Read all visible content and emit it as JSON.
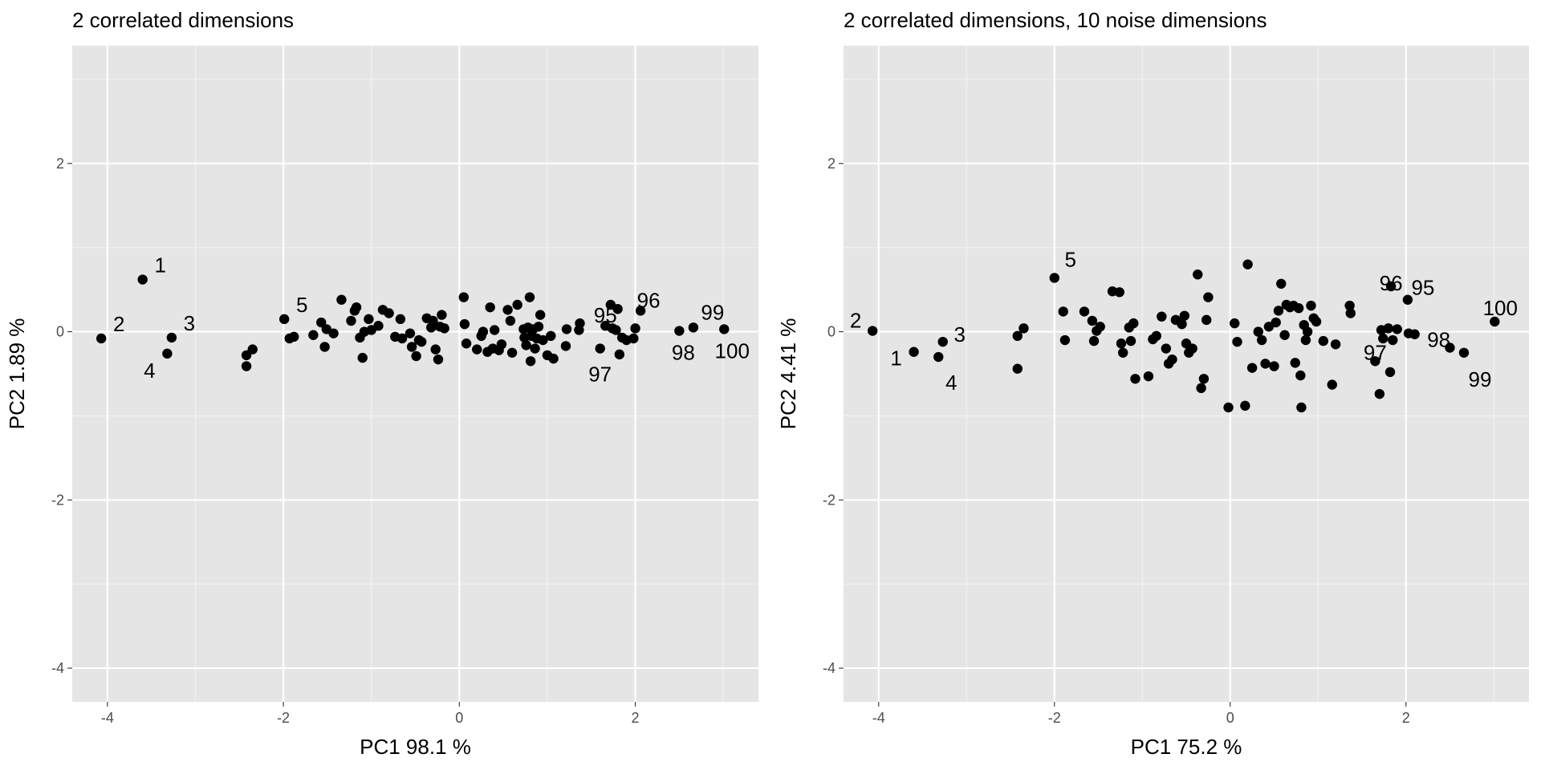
{
  "chart_data": [
    {
      "type": "scatter",
      "title": "2 correlated dimensions",
      "xlabel": "PC1  98.1 %",
      "ylabel": "PC2  1.89 %",
      "xlim": [
        -4.4,
        3.4
      ],
      "ylim": [
        -4.4,
        3.4
      ],
      "xticks": [
        -4,
        -2,
        0,
        2
      ],
      "yticks": [
        -4,
        -2,
        0,
        2
      ],
      "grid": true,
      "points": [
        {
          "x": -4.07,
          "y": -0.08,
          "label": "2"
        },
        {
          "x": -3.6,
          "y": 0.62,
          "label": "1"
        },
        {
          "x": -3.27,
          "y": -0.07,
          "label": "3"
        },
        {
          "x": -3.32,
          "y": -0.26,
          "label": "4"
        },
        {
          "x": -2.42,
          "y": -0.28
        },
        {
          "x": -2.42,
          "y": -0.41
        },
        {
          "x": -2.35,
          "y": -0.21
        },
        {
          "x": -1.99,
          "y": 0.15,
          "label": "5"
        },
        {
          "x": -1.93,
          "y": -0.08
        },
        {
          "x": -1.88,
          "y": -0.06
        },
        {
          "x": -1.66,
          "y": -0.04
        },
        {
          "x": -1.57,
          "y": 0.11
        },
        {
          "x": -1.53,
          "y": -0.18
        },
        {
          "x": -1.51,
          "y": 0.03
        },
        {
          "x": -1.43,
          "y": -0.02
        },
        {
          "x": -1.34,
          "y": 0.38
        },
        {
          "x": -1.23,
          "y": 0.13
        },
        {
          "x": -1.19,
          "y": 0.25
        },
        {
          "x": -1.17,
          "y": 0.29
        },
        {
          "x": -1.13,
          "y": -0.07
        },
        {
          "x": -1.1,
          "y": -0.31
        },
        {
          "x": -1.08,
          "y": 0.0
        },
        {
          "x": -1.03,
          "y": 0.15
        },
        {
          "x": -1.0,
          "y": 0.02
        },
        {
          "x": -0.92,
          "y": 0.07
        },
        {
          "x": -0.87,
          "y": 0.26
        },
        {
          "x": -0.8,
          "y": 0.22
        },
        {
          "x": -0.73,
          "y": -0.06
        },
        {
          "x": -0.67,
          "y": 0.15
        },
        {
          "x": -0.65,
          "y": -0.08
        },
        {
          "x": -0.56,
          "y": -0.02
        },
        {
          "x": -0.54,
          "y": -0.18
        },
        {
          "x": -0.49,
          "y": -0.29
        },
        {
          "x": -0.46,
          "y": -0.1
        },
        {
          "x": -0.43,
          "y": -0.12
        },
        {
          "x": -0.37,
          "y": 0.16
        },
        {
          "x": -0.32,
          "y": 0.05
        },
        {
          "x": -0.3,
          "y": 0.13
        },
        {
          "x": -0.27,
          "y": -0.21
        },
        {
          "x": -0.24,
          "y": -0.33
        },
        {
          "x": -0.22,
          "y": 0.06
        },
        {
          "x": -0.2,
          "y": 0.2
        },
        {
          "x": -0.17,
          "y": 0.04
        },
        {
          "x": 0.05,
          "y": 0.41
        },
        {
          "x": 0.06,
          "y": 0.09
        },
        {
          "x": 0.08,
          "y": -0.14
        },
        {
          "x": 0.2,
          "y": -0.21
        },
        {
          "x": 0.25,
          "y": -0.05
        },
        {
          "x": 0.27,
          "y": 0.0
        },
        {
          "x": 0.32,
          "y": -0.24
        },
        {
          "x": 0.35,
          "y": 0.29
        },
        {
          "x": 0.38,
          "y": -0.2
        },
        {
          "x": 0.4,
          "y": 0.02
        },
        {
          "x": 0.45,
          "y": -0.22
        },
        {
          "x": 0.48,
          "y": -0.15
        },
        {
          "x": 0.55,
          "y": 0.26
        },
        {
          "x": 0.58,
          "y": 0.13
        },
        {
          "x": 0.6,
          "y": -0.25
        },
        {
          "x": 0.66,
          "y": 0.32
        },
        {
          "x": 0.73,
          "y": 0.03
        },
        {
          "x": 0.74,
          "y": -0.07
        },
        {
          "x": 0.76,
          "y": -0.16
        },
        {
          "x": 0.78,
          "y": 0.05
        },
        {
          "x": 0.8,
          "y": 0.41
        },
        {
          "x": 0.81,
          "y": -0.35
        },
        {
          "x": 0.82,
          "y": -0.05
        },
        {
          "x": 0.84,
          "y": 0.03
        },
        {
          "x": 0.86,
          "y": -0.2
        },
        {
          "x": 0.88,
          "y": -0.08
        },
        {
          "x": 0.9,
          "y": 0.06
        },
        {
          "x": 0.92,
          "y": 0.2
        },
        {
          "x": 0.95,
          "y": -0.1
        },
        {
          "x": 1.0,
          "y": -0.28
        },
        {
          "x": 1.04,
          "y": -0.05
        },
        {
          "x": 1.07,
          "y": -0.32
        },
        {
          "x": 1.21,
          "y": -0.17
        },
        {
          "x": 1.22,
          "y": 0.03
        },
        {
          "x": 1.36,
          "y": 0.02
        },
        {
          "x": 1.37,
          "y": 0.1
        },
        {
          "x": 1.6,
          "y": -0.2,
          "label": "97"
        },
        {
          "x": 1.66,
          "y": 0.07,
          "label": "95"
        },
        {
          "x": 1.72,
          "y": 0.32
        },
        {
          "x": 1.74,
          "y": 0.04
        },
        {
          "x": 1.78,
          "y": 0.02
        },
        {
          "x": 1.8,
          "y": 0.27
        },
        {
          "x": 1.82,
          "y": -0.27
        },
        {
          "x": 1.85,
          "y": -0.07
        },
        {
          "x": 1.9,
          "y": -0.1
        },
        {
          "x": 1.98,
          "y": -0.08
        },
        {
          "x": 2.0,
          "y": 0.04
        },
        {
          "x": 2.06,
          "y": 0.25,
          "label": "96"
        },
        {
          "x": 2.5,
          "y": 0.01,
          "label": "98"
        },
        {
          "x": 2.66,
          "y": 0.05,
          "label": "99"
        },
        {
          "x": 3.01,
          "y": 0.03,
          "label": "100"
        }
      ]
    },
    {
      "type": "scatter",
      "title": "2 correlated dimensions, 10 noise dimensions",
      "xlabel": "PC1  75.2 %",
      "ylabel": "PC2  4.41 %",
      "xlim": [
        -4.4,
        3.4
      ],
      "ylim": [
        -4.4,
        3.4
      ],
      "xticks": [
        -4,
        -2,
        0,
        2
      ],
      "yticks": [
        -4,
        -2,
        0,
        2
      ],
      "grid": true,
      "points": [
        {
          "x": -4.07,
          "y": 0.01,
          "label": "2"
        },
        {
          "x": -3.6,
          "y": -0.24,
          "label": "1"
        },
        {
          "x": -3.27,
          "y": -0.12,
          "label": "3"
        },
        {
          "x": -3.32,
          "y": -0.3,
          "label": "4"
        },
        {
          "x": -2.42,
          "y": -0.05
        },
        {
          "x": -2.42,
          "y": -0.44
        },
        {
          "x": -2.35,
          "y": 0.04
        },
        {
          "x": -2.0,
          "y": 0.64,
          "label": "5"
        },
        {
          "x": -1.9,
          "y": 0.24
        },
        {
          "x": -1.88,
          "y": -0.1
        },
        {
          "x": -1.66,
          "y": 0.24
        },
        {
          "x": -1.57,
          "y": 0.13
        },
        {
          "x": -1.55,
          "y": -0.11
        },
        {
          "x": -1.52,
          "y": 0.01
        },
        {
          "x": -1.48,
          "y": 0.06
        },
        {
          "x": -1.34,
          "y": 0.48
        },
        {
          "x": -1.26,
          "y": 0.47
        },
        {
          "x": -1.24,
          "y": -0.14
        },
        {
          "x": -1.22,
          "y": -0.25
        },
        {
          "x": -1.15,
          "y": 0.05
        },
        {
          "x": -1.13,
          "y": -0.11
        },
        {
          "x": -1.1,
          "y": 0.1
        },
        {
          "x": -1.08,
          "y": -0.56
        },
        {
          "x": -0.93,
          "y": -0.53
        },
        {
          "x": -0.88,
          "y": -0.09
        },
        {
          "x": -0.84,
          "y": -0.05
        },
        {
          "x": -0.78,
          "y": 0.18
        },
        {
          "x": -0.73,
          "y": -0.2
        },
        {
          "x": -0.7,
          "y": -0.38
        },
        {
          "x": -0.66,
          "y": -0.33
        },
        {
          "x": -0.62,
          "y": 0.14
        },
        {
          "x": -0.55,
          "y": 0.09
        },
        {
          "x": -0.52,
          "y": 0.19
        },
        {
          "x": -0.5,
          "y": -0.14
        },
        {
          "x": -0.47,
          "y": -0.25
        },
        {
          "x": -0.43,
          "y": -0.2
        },
        {
          "x": -0.37,
          "y": 0.68
        },
        {
          "x": -0.33,
          "y": -0.67
        },
        {
          "x": -0.3,
          "y": -0.56
        },
        {
          "x": -0.27,
          "y": 0.14
        },
        {
          "x": -0.25,
          "y": 0.41
        },
        {
          "x": -0.02,
          "y": -0.9
        },
        {
          "x": 0.05,
          "y": 0.1
        },
        {
          "x": 0.08,
          "y": -0.12
        },
        {
          "x": 0.17,
          "y": -0.88
        },
        {
          "x": 0.2,
          "y": 0.8
        },
        {
          "x": 0.25,
          "y": -0.43
        },
        {
          "x": 0.32,
          "y": 0.0
        },
        {
          "x": 0.36,
          "y": -0.1
        },
        {
          "x": 0.4,
          "y": -0.38
        },
        {
          "x": 0.44,
          "y": 0.06
        },
        {
          "x": 0.5,
          "y": -0.41
        },
        {
          "x": 0.52,
          "y": 0.11
        },
        {
          "x": 0.55,
          "y": 0.25
        },
        {
          "x": 0.58,
          "y": 0.57
        },
        {
          "x": 0.62,
          "y": -0.04
        },
        {
          "x": 0.64,
          "y": 0.32
        },
        {
          "x": 0.68,
          "y": 0.29
        },
        {
          "x": 0.72,
          "y": 0.31
        },
        {
          "x": 0.74,
          "y": -0.37
        },
        {
          "x": 0.78,
          "y": 0.28
        },
        {
          "x": 0.8,
          "y": -0.52
        },
        {
          "x": 0.81,
          "y": -0.9
        },
        {
          "x": 0.84,
          "y": 0.08
        },
        {
          "x": 0.86,
          "y": -0.1
        },
        {
          "x": 0.88,
          "y": 0.0
        },
        {
          "x": 0.92,
          "y": 0.31
        },
        {
          "x": 0.95,
          "y": 0.16
        },
        {
          "x": 0.98,
          "y": 0.12
        },
        {
          "x": 1.06,
          "y": -0.11
        },
        {
          "x": 1.16,
          "y": -0.63
        },
        {
          "x": 1.2,
          "y": -0.15
        },
        {
          "x": 1.36,
          "y": 0.31
        },
        {
          "x": 1.37,
          "y": 0.22
        },
        {
          "x": 1.65,
          "y": -0.35,
          "label": "97"
        },
        {
          "x": 1.7,
          "y": -0.74
        },
        {
          "x": 1.72,
          "y": 0.02
        },
        {
          "x": 1.74,
          "y": -0.08
        },
        {
          "x": 1.8,
          "y": 0.04
        },
        {
          "x": 1.82,
          "y": -0.48
        },
        {
          "x": 1.83,
          "y": 0.54,
          "label": "96"
        },
        {
          "x": 1.85,
          "y": -0.1
        },
        {
          "x": 1.9,
          "y": 0.03
        },
        {
          "x": 2.02,
          "y": 0.38,
          "label": "95"
        },
        {
          "x": 2.03,
          "y": -0.02
        },
        {
          "x": 2.1,
          "y": -0.03,
          "label": "98"
        },
        {
          "x": 2.5,
          "y": -0.19
        },
        {
          "x": 2.66,
          "y": -0.25,
          "label": "99"
        },
        {
          "x": 3.01,
          "y": 0.12,
          "label": "100"
        }
      ]
    }
  ]
}
